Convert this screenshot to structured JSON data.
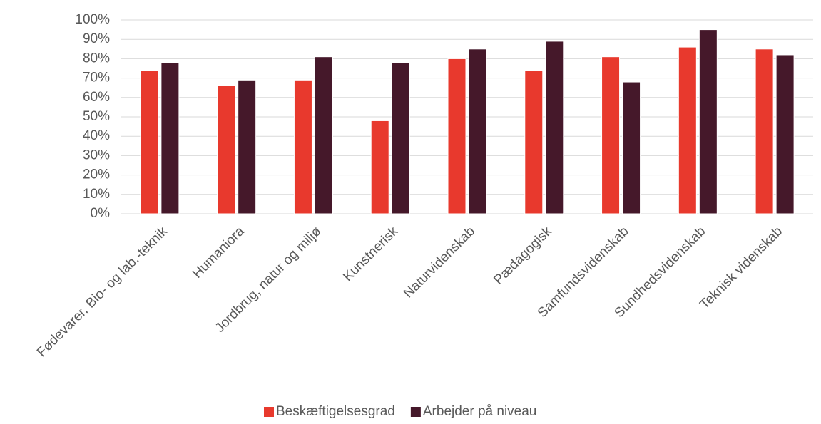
{
  "chart_data": {
    "type": "bar",
    "categories": [
      "Fødevarer, Bio- og lab.-teknik",
      "Humaniora",
      "Jordbrug, natur og miljø",
      "Kunstnerisk",
      "Naturvidenskab",
      "Pædagogisk",
      "Samfundsvidenskab",
      "Sundhedsvidenskab",
      "Teknisk videnskab"
    ],
    "series": [
      {
        "name": "Beskæftigelsesgrad",
        "color": "#e8392d",
        "values": [
          74,
          66,
          69,
          48,
          80,
          74,
          81,
          86,
          85
        ]
      },
      {
        "name": "Arbejder på niveau",
        "color": "#45182a",
        "values": [
          78,
          69,
          81,
          78,
          85,
          89,
          68,
          95,
          82
        ]
      }
    ],
    "ylim": [
      0,
      100
    ],
    "yticks": [
      {
        "value": 0,
        "label": "0%"
      },
      {
        "value": 10,
        "label": "10%"
      },
      {
        "value": 20,
        "label": "20%"
      },
      {
        "value": 30,
        "label": "30%"
      },
      {
        "value": 40,
        "label": "40%"
      },
      {
        "value": 50,
        "label": "50%"
      },
      {
        "value": 60,
        "label": "60%"
      },
      {
        "value": 70,
        "label": "70%"
      },
      {
        "value": 80,
        "label": "80%"
      },
      {
        "value": 90,
        "label": "90%"
      },
      {
        "value": 100,
        "label": "100%"
      }
    ],
    "grid": true,
    "legend": "bottom"
  }
}
